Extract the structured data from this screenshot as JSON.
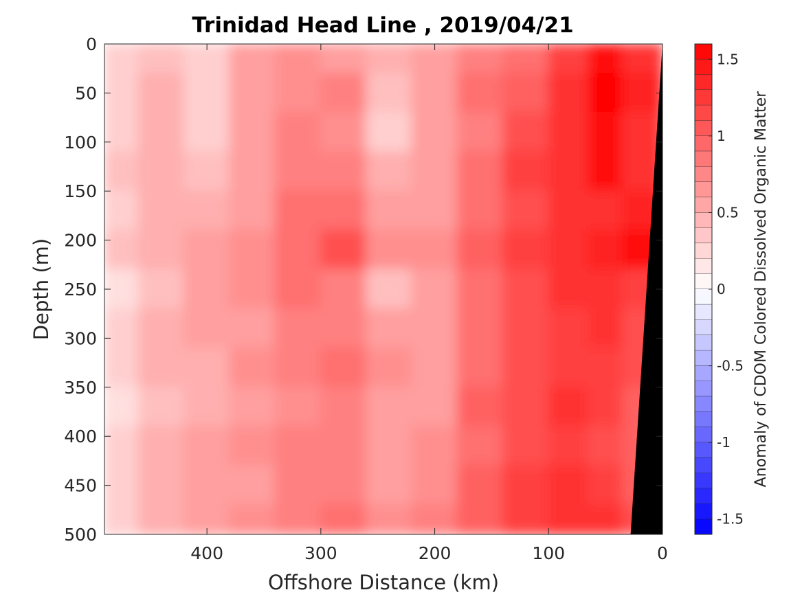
{
  "chart_data": {
    "type": "heatmap",
    "title": "Trinidad Head Line , 2019/04/21",
    "xlabel": "Offshore Distance (km)",
    "ylabel": "Depth (m)",
    "xlim": [
      490,
      0
    ],
    "ylim": [
      500,
      0
    ],
    "x_reversed": true,
    "y_reversed": true,
    "x_ticks": [
      400,
      300,
      200,
      100,
      0
    ],
    "y_ticks": [
      0,
      50,
      100,
      150,
      200,
      250,
      300,
      350,
      400,
      450,
      500
    ],
    "x": [
      480,
      440,
      400,
      360,
      320,
      280,
      240,
      200,
      160,
      120,
      80,
      50,
      20
    ],
    "y": [
      10,
      50,
      90,
      130,
      170,
      210,
      250,
      290,
      330,
      370,
      410,
      450,
      490
    ],
    "z": [
      [
        0.3,
        0.4,
        0.3,
        0.6,
        0.7,
        0.6,
        0.45,
        0.6,
        0.8,
        0.9,
        1.2,
        1.5,
        1.3
      ],
      [
        0.35,
        0.5,
        0.3,
        0.55,
        0.7,
        0.8,
        0.4,
        0.6,
        0.9,
        1.0,
        1.3,
        1.6,
        1.4
      ],
      [
        0.3,
        0.45,
        0.25,
        0.6,
        0.75,
        0.7,
        0.35,
        0.55,
        0.8,
        1.1,
        1.3,
        1.5,
        1.3
      ],
      [
        0.4,
        0.5,
        0.4,
        0.6,
        0.8,
        0.75,
        0.45,
        0.6,
        0.85,
        1.2,
        1.3,
        1.5,
        1.3
      ],
      [
        0.3,
        0.45,
        0.45,
        0.6,
        0.85,
        0.9,
        0.6,
        0.6,
        0.9,
        1.15,
        1.3,
        1.3,
        1.4
      ],
      [
        0.4,
        0.5,
        0.55,
        0.65,
        0.95,
        1.05,
        0.7,
        0.65,
        1.0,
        1.2,
        1.3,
        1.35,
        1.5
      ],
      [
        0.2,
        0.4,
        0.55,
        0.65,
        0.85,
        0.8,
        0.4,
        0.55,
        0.9,
        1.15,
        1.25,
        1.3,
        1.2
      ],
      [
        0.25,
        0.45,
        0.55,
        0.6,
        0.8,
        0.75,
        0.55,
        0.55,
        0.95,
        1.15,
        1.2,
        1.25,
        1.15
      ],
      [
        0.3,
        0.5,
        0.5,
        0.65,
        0.75,
        0.85,
        0.65,
        0.6,
        0.9,
        1.1,
        1.2,
        1.2,
        1.1
      ],
      [
        0.2,
        0.4,
        0.5,
        0.6,
        0.7,
        0.8,
        0.6,
        0.6,
        1.0,
        1.15,
        1.25,
        1.2,
        1.0
      ],
      [
        0.35,
        0.5,
        0.55,
        0.65,
        0.75,
        0.8,
        0.55,
        0.65,
        0.95,
        1.15,
        1.2,
        1.15,
        1.0
      ],
      [
        0.25,
        0.45,
        0.6,
        0.6,
        0.75,
        0.8,
        0.6,
        0.7,
        1.0,
        1.2,
        1.25,
        1.2,
        1.0
      ],
      [
        0.3,
        0.45,
        0.55,
        0.65,
        0.8,
        0.85,
        0.65,
        0.75,
        1.0,
        1.2,
        1.3,
        1.3,
        1.1
      ]
    ],
    "bathymetry_mask": {
      "color": "#000000",
      "x_at_surface": 0,
      "x_at_bottom": 28
    },
    "colorbar": {
      "label": "Anomaly of CDOM Colored Dissolved Organic Matter",
      "range": [
        -1.6,
        1.6
      ],
      "ticks": [
        1.5,
        1,
        0.5,
        0,
        -0.5,
        -1,
        -1.5
      ],
      "tick_labels": [
        "1.5",
        "1",
        "0.5",
        "0",
        "-0.5",
        "-1",
        "-1.5"
      ],
      "levels": 32,
      "colormap": "blue-white-red",
      "negative_color": "#0000ff",
      "neutral_color": "#ffffff",
      "positive_color": "#ff0000"
    }
  }
}
